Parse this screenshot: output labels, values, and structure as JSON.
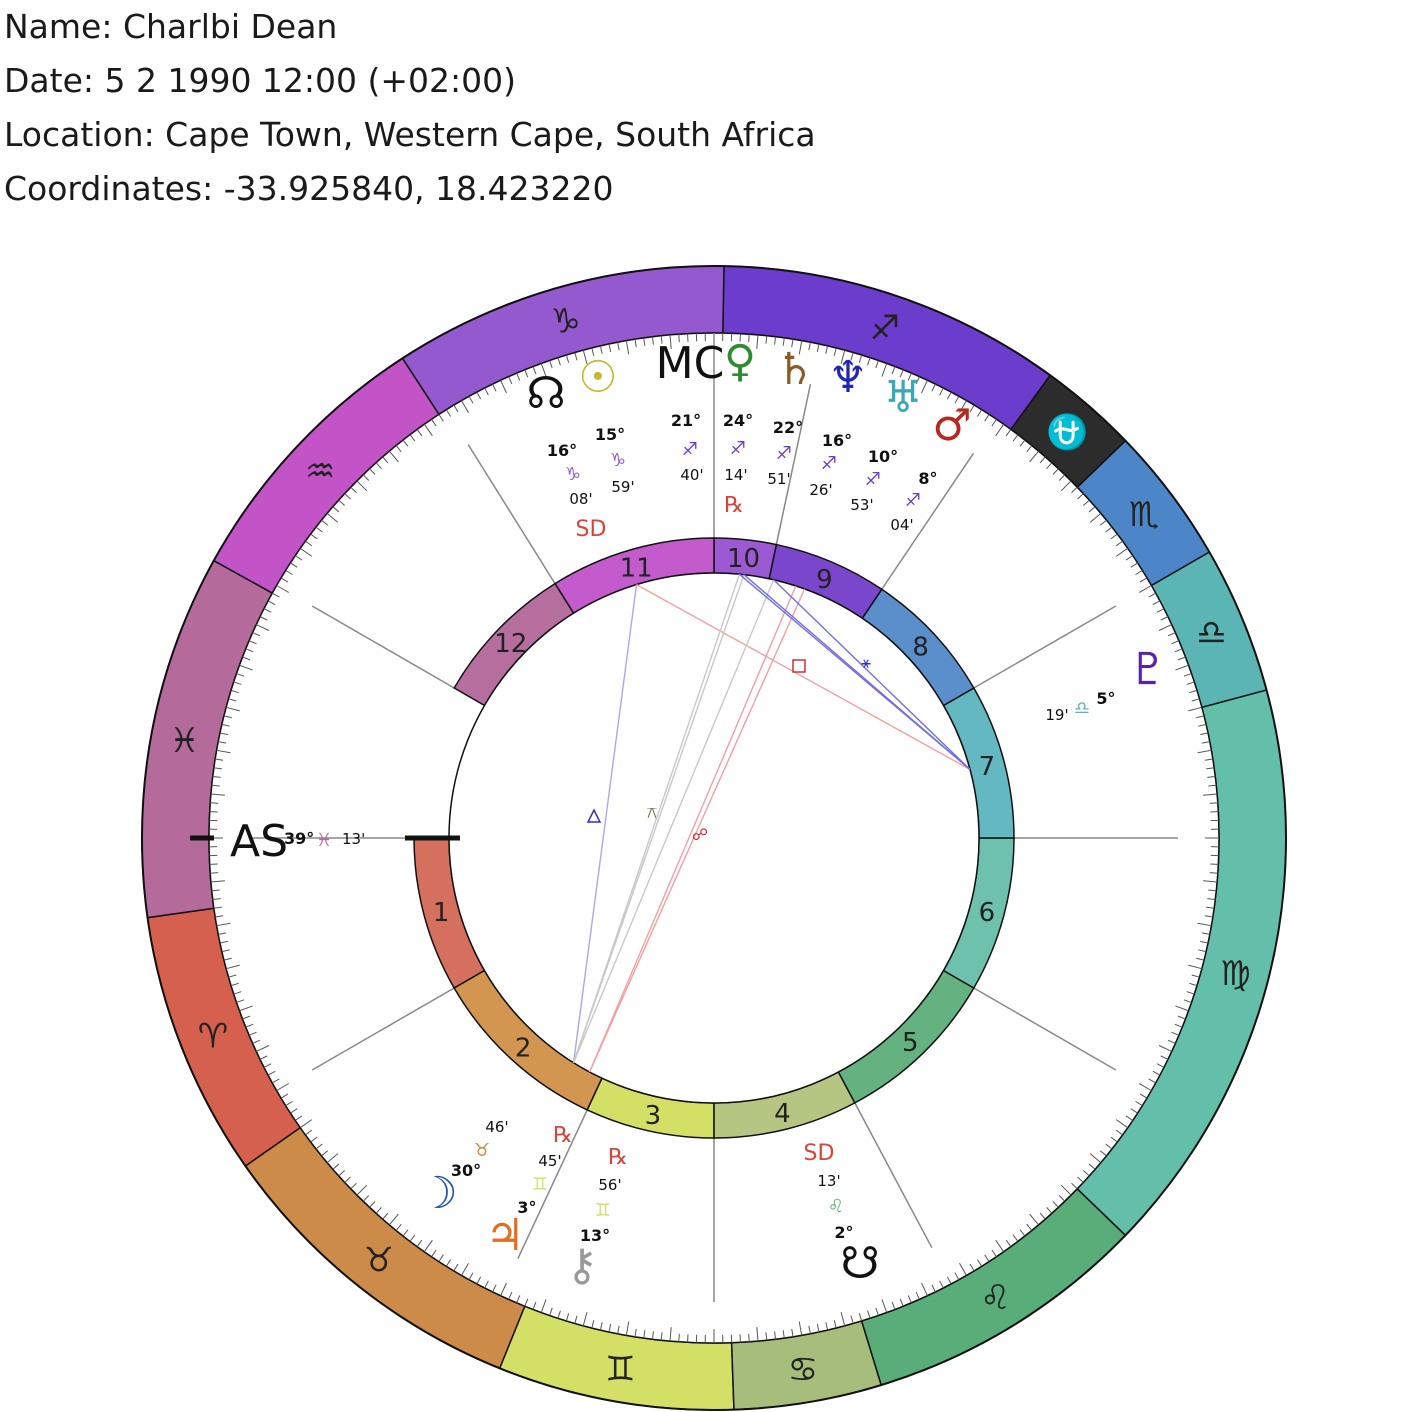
{
  "header": {
    "name_line": "Name: Charlbi Dean",
    "date_line": "Date: 5 2 1990 12:00 (+02:00)",
    "location_line": "Location: Cape Town, Western Cape, South Africa",
    "coords_line": "Coordinates: -33.925840, 18.423220"
  },
  "ascendant": {
    "label": "AS",
    "deg": "39°",
    "min": "13'",
    "sign_glyph": "♓",
    "sign_color": "#b46b9b"
  },
  "signs": [
    {
      "name": "Aries",
      "glyph": "♈",
      "color": "#d4604d"
    },
    {
      "name": "Taurus",
      "glyph": "♉",
      "color": "#cc8b48"
    },
    {
      "name": "Gemini",
      "glyph": "♊",
      "color": "#d4df66"
    },
    {
      "name": "Cancer",
      "glyph": "♋",
      "color": "#a6bd7c"
    },
    {
      "name": "Leo",
      "glyph": "♌",
      "color": "#58ad78"
    },
    {
      "name": "Virgo",
      "glyph": "♍",
      "color": "#64bfaa"
    },
    {
      "name": "Libra",
      "glyph": "♎",
      "color": "#5cb5b5"
    },
    {
      "name": "Scorpio",
      "glyph": "♏",
      "color": "#4d86c8"
    },
    {
      "name": "Ophiuchus",
      "glyph": "⛎",
      "color": "#2c2c2c"
    },
    {
      "name": "Sagittarius",
      "glyph": "♐",
      "color": "#6c3ccc"
    },
    {
      "name": "Capricorn",
      "glyph": "♑",
      "color": "#9458cf"
    },
    {
      "name": "Aquarius",
      "glyph": "♒",
      "color": "#c254c8"
    },
    {
      "name": "Pisces",
      "glyph": "♓",
      "color": "#b46b9b"
    }
  ],
  "houses": [
    {
      "num": "1",
      "color": "#d4705d"
    },
    {
      "num": "2",
      "color": "#d29650"
    },
    {
      "num": "3",
      "color": "#d4df66"
    },
    {
      "num": "4",
      "color": "#b5c682"
    },
    {
      "num": "5",
      "color": "#63b27f"
    },
    {
      "num": "6",
      "color": "#6ec2ad"
    },
    {
      "num": "7",
      "color": "#64b8c2"
    },
    {
      "num": "8",
      "color": "#5b8fcb"
    },
    {
      "num": "9",
      "color": "#7a47cc"
    },
    {
      "num": "10",
      "color": "#9b5ad1"
    },
    {
      "num": "11",
      "color": "#c45bcd"
    },
    {
      "num": "12",
      "color": "#b56e9d"
    }
  ],
  "planets": [
    {
      "name": "North Node",
      "glyph": "☊",
      "color": "#111111",
      "deg": "16°",
      "sign_glyph": "♑",
      "sign_color": "#9458cf",
      "min": "08'",
      "status": "SD"
    },
    {
      "name": "Sun",
      "glyph": "☉",
      "color": "#c2b72f",
      "deg": "15°",
      "sign_glyph": "♑",
      "sign_color": "#9458cf",
      "min": "59'",
      "status": ""
    },
    {
      "name": "MC",
      "glyph": "MC",
      "color": "#111111",
      "deg": "21°",
      "sign_glyph": "♐",
      "sign_color": "#6c3ccc",
      "min": "40'",
      "status": ""
    },
    {
      "name": "Venus",
      "glyph": "♀",
      "color": "#2e8b2e",
      "deg": "24°",
      "sign_glyph": "♐",
      "sign_color": "#6c3ccc",
      "min": "14'",
      "status": "℞"
    },
    {
      "name": "Saturn",
      "glyph": "♄",
      "color": "#8a5a2b",
      "deg": "22°",
      "sign_glyph": "♐",
      "sign_color": "#6c3ccc",
      "min": "51'",
      "status": ""
    },
    {
      "name": "Neptune",
      "glyph": "♆",
      "color": "#2026b8",
      "deg": "16°",
      "sign_glyph": "♐",
      "sign_color": "#6c3ccc",
      "min": "26'",
      "status": ""
    },
    {
      "name": "Uranus",
      "glyph": "♅",
      "color": "#3aa9b5",
      "deg": "10°",
      "sign_glyph": "♐",
      "sign_color": "#6c3ccc",
      "min": "53'",
      "status": ""
    },
    {
      "name": "Mars",
      "glyph": "♂",
      "color": "#b52a20",
      "deg": "8°",
      "sign_glyph": "♐",
      "sign_color": "#6c3ccc",
      "min": "04'",
      "status": ""
    },
    {
      "name": "Pluto",
      "glyph": "♇",
      "color": "#5a20b0",
      "deg": "5°",
      "sign_glyph": "♎",
      "sign_color": "#5cb5b5",
      "min": "19'",
      "status": ""
    },
    {
      "name": "Moon",
      "glyph": "☽",
      "color": "#2050b8",
      "deg": "30°",
      "sign_glyph": "♉",
      "sign_color": "#cc8b48",
      "min": "46'",
      "status": ""
    },
    {
      "name": "Jupiter",
      "glyph": "♃",
      "color": "#e07020",
      "deg": "3°",
      "sign_glyph": "♊",
      "sign_color": "#d4df66",
      "min": "45'",
      "status": "℞"
    },
    {
      "name": "Chiron",
      "glyph": "⚷",
      "color": "#999999",
      "deg": "13°",
      "sign_glyph": "♊",
      "sign_color": "#d4df66",
      "min": "56'",
      "status": "℞"
    },
    {
      "name": "South Node",
      "glyph": "☋",
      "color": "#111111",
      "deg": "2°",
      "sign_glyph": "♌",
      "sign_color": "#58ad78",
      "min": "13'",
      "status": "SD"
    }
  ]
}
